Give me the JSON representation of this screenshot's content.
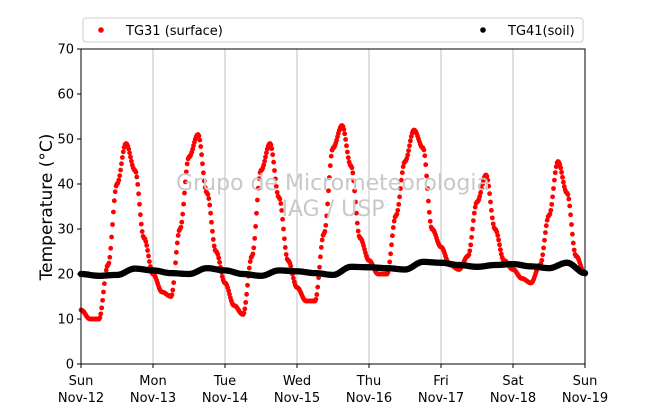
{
  "chart_data": {
    "type": "scatter",
    "ylabel": "Temperature (°C)",
    "xlabel": "",
    "ylim": [
      0,
      70
    ],
    "yticks": [
      0,
      10,
      20,
      30,
      40,
      50,
      60,
      70
    ],
    "xlim": [
      "2023-11-12",
      "2023-11-19"
    ],
    "xtick_labels": [
      [
        "Sun",
        "Nov-12"
      ],
      [
        "Mon",
        "Nov-13"
      ],
      [
        "Tue",
        "Nov-14"
      ],
      [
        "Wed",
        "Nov-15"
      ],
      [
        "Thu",
        "Nov-16"
      ],
      [
        "Fri",
        "Nov-17"
      ],
      [
        "Sat",
        "Nov-18"
      ],
      [
        "Sun",
        "Nov-19"
      ]
    ],
    "grid": "vertical",
    "legend_position": "top",
    "watermark": [
      "Grupo de Micrometeorologia",
      "IAG / USP"
    ],
    "series": [
      {
        "name": "TG31 (surface)",
        "color": "#ff0000",
        "marker": "dot",
        "x": [
          "2023-11-12 00:00",
          "2023-11-12 03:00",
          "2023-11-12 06:00",
          "2023-11-12 09:00",
          "2023-11-12 12:00",
          "2023-11-12 15:00",
          "2023-11-12 18:00",
          "2023-11-12 21:00",
          "2023-11-13 00:00",
          "2023-11-13 03:00",
          "2023-11-13 06:00",
          "2023-11-13 09:00",
          "2023-11-13 12:00",
          "2023-11-13 15:00",
          "2023-11-13 18:00",
          "2023-11-13 21:00",
          "2023-11-14 00:00",
          "2023-11-14 03:00",
          "2023-11-14 06:00",
          "2023-11-14 09:00",
          "2023-11-14 12:00",
          "2023-11-14 15:00",
          "2023-11-14 18:00",
          "2023-11-14 21:00",
          "2023-11-15 00:00",
          "2023-11-15 03:00",
          "2023-11-15 06:00",
          "2023-11-15 09:00",
          "2023-11-15 12:00",
          "2023-11-15 15:00",
          "2023-11-15 18:00",
          "2023-11-15 21:00",
          "2023-11-16 00:00",
          "2023-11-16 03:00",
          "2023-11-16 06:00",
          "2023-11-16 09:00",
          "2023-11-16 12:00",
          "2023-11-16 15:00",
          "2023-11-16 18:00",
          "2023-11-16 21:00",
          "2023-11-17 00:00",
          "2023-11-17 03:00",
          "2023-11-17 06:00",
          "2023-11-17 09:00",
          "2023-11-17 12:00",
          "2023-11-17 15:00",
          "2023-11-17 18:00",
          "2023-11-17 21:00",
          "2023-11-18 00:00",
          "2023-11-18 03:00",
          "2023-11-18 06:00",
          "2023-11-18 09:00",
          "2023-11-18 12:00",
          "2023-11-18 15:00",
          "2023-11-18 18:00",
          "2023-11-18 21:00",
          "2023-11-19 00:00"
        ],
        "y": [
          12,
          10,
          10,
          22,
          40,
          49,
          43,
          28,
          20,
          16,
          15,
          30,
          46,
          51,
          38,
          25,
          18,
          13,
          11,
          24,
          43,
          49,
          37,
          23,
          17,
          14,
          14,
          29,
          48,
          53,
          44,
          28,
          23,
          20,
          20,
          33,
          45,
          52,
          48,
          30,
          26,
          22,
          21,
          24,
          36,
          42,
          30,
          23,
          21,
          19,
          18,
          22,
          33,
          45,
          38,
          24,
          20
        ]
      },
      {
        "name": "TG41(soil)",
        "color": "#000000",
        "marker": "dot",
        "x": [
          "2023-11-12 00:00",
          "2023-11-12 06:00",
          "2023-11-12 12:00",
          "2023-11-12 18:00",
          "2023-11-13 00:00",
          "2023-11-13 06:00",
          "2023-11-13 12:00",
          "2023-11-13 18:00",
          "2023-11-14 00:00",
          "2023-11-14 06:00",
          "2023-11-14 12:00",
          "2023-11-14 18:00",
          "2023-11-15 00:00",
          "2023-11-15 06:00",
          "2023-11-15 12:00",
          "2023-11-15 18:00",
          "2023-11-16 00:00",
          "2023-11-16 06:00",
          "2023-11-16 12:00",
          "2023-11-16 18:00",
          "2023-11-17 00:00",
          "2023-11-17 06:00",
          "2023-11-17 12:00",
          "2023-11-17 18:00",
          "2023-11-18 00:00",
          "2023-11-18 06:00",
          "2023-11-18 12:00",
          "2023-11-18 18:00",
          "2023-11-19 00:00"
        ],
        "y": [
          20,
          19.6,
          19.8,
          21.2,
          20.8,
          20.2,
          20.0,
          21.3,
          20.8,
          20.0,
          19.6,
          20.8,
          20.6,
          20.2,
          19.8,
          21.6,
          21.5,
          21.3,
          21.0,
          22.7,
          22.5,
          22.0,
          21.6,
          22.0,
          22.2,
          21.7,
          21.3,
          22.5,
          20.2
        ]
      }
    ]
  }
}
